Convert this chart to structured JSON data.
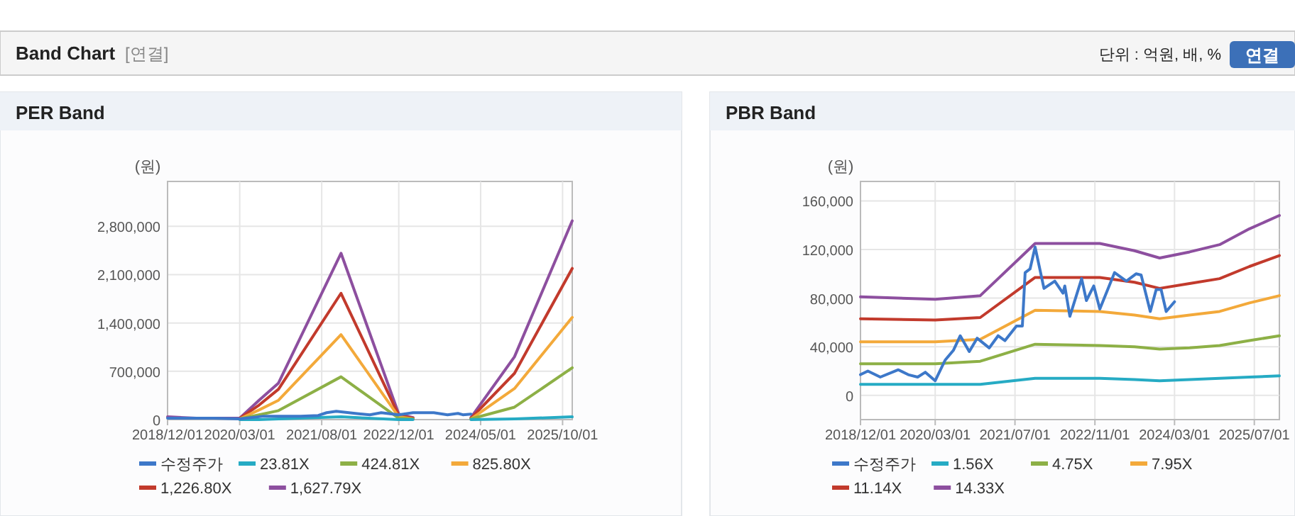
{
  "chart_data": [
    {
      "type": "line",
      "title": "PER Band",
      "ylabel": "(원)",
      "annotations": [
        "Band Chart",
        "[연결]",
        "단위 : 억원, 배, %",
        "연결"
      ],
      "grid": true,
      "legend": "bottom",
      "x": [
        "2018-12-01",
        "2019-06-01",
        "2019-12-01",
        "2020-03-01",
        "2020-07-01",
        "2020-11-01",
        "2021-12-01",
        "2022-12-01",
        "2023-03-01",
        "2023-09-01",
        "2024-03-01",
        "2024-12-01",
        "2025-12-01"
      ],
      "xlim": [
        "2018-12-01",
        "2025-12-01"
      ],
      "xticks": [
        {
          "value": "2018-12-01",
          "label": "2018/12/01"
        },
        {
          "value": "2020-03-01",
          "label": "2020/03/01"
        },
        {
          "value": "2021-08-01",
          "label": "2021/08/01"
        },
        {
          "value": "2022-12-01",
          "label": "2022/12/01"
        },
        {
          "value": "2024-05-01",
          "label": "2024/05/01"
        },
        {
          "value": "2025-10-01",
          "label": "2025/10/01"
        }
      ],
      "ylim": [
        0,
        3450000
      ],
      "yticks": [
        {
          "value": 0,
          "label": "0"
        },
        {
          "value": 700000,
          "label": "700,000"
        },
        {
          "value": 1400000,
          "label": "1,400,000"
        },
        {
          "value": 2100000,
          "label": "2,100,000"
        },
        {
          "value": 2800000,
          "label": "2,800,000"
        }
      ],
      "series": [
        {
          "name": "수정주가",
          "color": "#3d78c9",
          "x": [
            "2018-12-01",
            "2019-04-01",
            "2019-09-18",
            "2020-03-01",
            "2020-08-01",
            "2020-11-12",
            "2021-03-20",
            "2021-07-10",
            "2021-09-01",
            "2021-11-01",
            "2022-03-01",
            "2022-06-01",
            "2022-08-12",
            "2022-12-01",
            "2023-03-01",
            "2023-07-10",
            "2023-10-05",
            "2023-12-10",
            "2024-01-10",
            "2024-03-01"
          ],
          "values": [
            20000,
            20000,
            20000,
            10000,
            50000,
            50000,
            50000,
            60000,
            100000,
            120000,
            90000,
            70000,
            100000,
            70000,
            100000,
            100000,
            70000,
            90000,
            70000,
            80000
          ]
        },
        {
          "name": "23.81X",
          "color": "#26abc4",
          "values": [
            null,
            null,
            null,
            0,
            0,
            10000,
            40000,
            0,
            0,
            null,
            0,
            10000,
            40000
          ]
        },
        {
          "name": "424.81X",
          "color": "#8db046",
          "values": [
            null,
            null,
            null,
            10000,
            70000,
            130000,
            620000,
            20000,
            10000,
            null,
            10000,
            180000,
            750000
          ]
        },
        {
          "name": "825.80X",
          "color": "#f3a93a",
          "values": [
            null,
            null,
            null,
            10000,
            140000,
            280000,
            1230000,
            40000,
            10000,
            null,
            10000,
            450000,
            1480000
          ]
        },
        {
          "name": "1,226.80X",
          "color": "#c23a2c",
          "values": [
            null,
            null,
            null,
            20000,
            210000,
            440000,
            1830000,
            60000,
            20000,
            null,
            20000,
            670000,
            2190000
          ]
        },
        {
          "name": "1,627.79X",
          "color": "#8d4f9f",
          "values": [
            40000,
            20000,
            20000,
            20000,
            280000,
            530000,
            2410000,
            80000,
            30000,
            null,
            30000,
            910000,
            2880000
          ]
        }
      ]
    },
    {
      "type": "line",
      "title": "PBR Band",
      "ylabel": "(원)",
      "grid": true,
      "legend": "bottom",
      "x": [
        "2018-12-01",
        "2020-03-01",
        "2020-12-01",
        "2021-11-01",
        "2022-12-01",
        "2023-07-01",
        "2023-12-01",
        "2024-06-01",
        "2024-12-01",
        "2025-06-01",
        "2025-12-01"
      ],
      "xlim": [
        "2018-12-01",
        "2025-12-01"
      ],
      "xticks": [
        {
          "value": "2018-12-01",
          "label": "2018/12/01"
        },
        {
          "value": "2020-03-01",
          "label": "2020/03/01"
        },
        {
          "value": "2021-07-01",
          "label": "2021/07/01"
        },
        {
          "value": "2022-11-01",
          "label": "2022/11/01"
        },
        {
          "value": "2024-03-01",
          "label": "2024/03/01"
        },
        {
          "value": "2025-07-01",
          "label": "2025/07/01"
        }
      ],
      "ylim": [
        -20000,
        176000
      ],
      "yticks": [
        {
          "value": 0,
          "label": "0"
        },
        {
          "value": 40000,
          "label": "40,000"
        },
        {
          "value": 80000,
          "label": "80,000"
        },
        {
          "value": 120000,
          "label": "120,000"
        },
        {
          "value": 160000,
          "label": "160,000"
        }
      ],
      "series": [
        {
          "name": "수정주가",
          "color": "#3d78c9",
          "x": [
            "2018-12-01",
            "2019-01-15",
            "2019-04-01",
            "2019-07-20",
            "2019-09-18",
            "2019-11-15",
            "2020-01-01",
            "2020-03-01",
            "2020-05-01",
            "2020-06-20",
            "2020-08-01",
            "2020-09-25",
            "2020-11-12",
            "2021-01-25",
            "2021-03-20",
            "2021-05-01",
            "2021-07-10",
            "2021-08-15",
            "2021-09-01",
            "2021-10-01",
            "2021-11-01",
            "2021-12-25",
            "2022-03-01",
            "2022-04-20",
            "2022-05-01",
            "2022-06-01",
            "2022-08-12",
            "2022-09-10",
            "2022-10-25",
            "2022-12-01",
            "2023-03-01",
            "2023-05-12",
            "2023-07-10",
            "2023-08-10",
            "2023-10-05",
            "2023-11-10",
            "2023-12-10",
            "2024-01-10",
            "2024-03-01"
          ],
          "values": [
            17000,
            20000,
            15000,
            21000,
            17000,
            15000,
            19000,
            12000,
            29000,
            37000,
            49000,
            36000,
            47000,
            39000,
            49000,
            45000,
            57000,
            57000,
            101000,
            104000,
            122000,
            88000,
            94000,
            84000,
            90000,
            65000,
            96000,
            78000,
            90000,
            71000,
            101000,
            94000,
            100000,
            99000,
            69000,
            87000,
            87000,
            69000,
            77000
          ]
        },
        {
          "name": "1.56X",
          "color": "#26abc4",
          "values": [
            9000,
            9000,
            9000,
            14000,
            14000,
            13000,
            12000,
            13000,
            14000,
            15000,
            16000
          ]
        },
        {
          "name": "4.75X",
          "color": "#8db046",
          "values": [
            26000,
            26000,
            28000,
            42000,
            41000,
            40000,
            38000,
            39000,
            41000,
            45000,
            49000
          ]
        },
        {
          "name": "7.95X",
          "color": "#f3a93a",
          "values": [
            44000,
            44000,
            46000,
            70000,
            69000,
            66000,
            63000,
            66000,
            69000,
            76000,
            82000
          ]
        },
        {
          "name": "11.14X",
          "color": "#c23a2c",
          "values": [
            63000,
            62000,
            64000,
            97000,
            97000,
            93000,
            88000,
            92000,
            96000,
            106000,
            115000
          ]
        },
        {
          "name": "14.33X",
          "color": "#8d4f9f",
          "values": [
            81000,
            79000,
            82000,
            125000,
            125000,
            119000,
            113000,
            118000,
            124000,
            137000,
            148000
          ]
        }
      ]
    }
  ]
}
